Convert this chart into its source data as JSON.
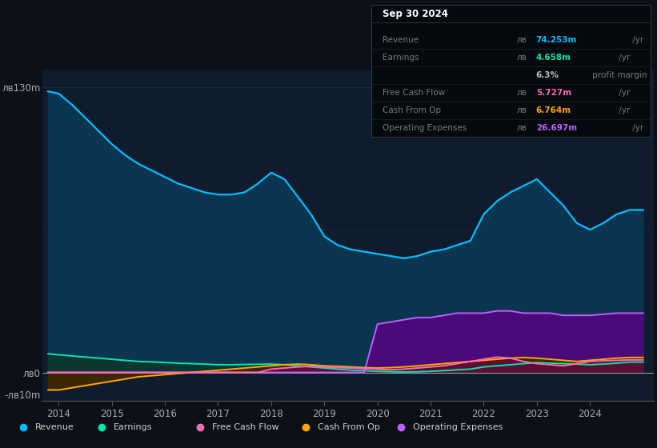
{
  "bg_color": "#0d1117",
  "plot_bg_color": "#0e1c2e",
  "revenue_color": "#00bfff",
  "earnings_color": "#00e5b0",
  "fcf_color": "#ff69b4",
  "cashop_color": "#ffa500",
  "opex_color": "#bf5fff",
  "revenue_fill": "#0a3550",
  "earnings_fill": "#0a3530",
  "opex_fill": "#4a0a7a",
  "years": [
    2013.8,
    2014.0,
    2014.25,
    2014.5,
    2014.75,
    2015.0,
    2015.25,
    2015.5,
    2015.75,
    2016.0,
    2016.25,
    2016.5,
    2016.75,
    2017.0,
    2017.25,
    2017.5,
    2017.75,
    2018.0,
    2018.25,
    2018.5,
    2018.75,
    2019.0,
    2019.25,
    2019.5,
    2019.75,
    2020.0,
    2020.25,
    2020.5,
    2020.75,
    2021.0,
    2021.25,
    2021.5,
    2021.75,
    2022.0,
    2022.25,
    2022.5,
    2022.75,
    2023.0,
    2023.25,
    2023.5,
    2023.75,
    2024.0,
    2024.25,
    2024.5,
    2024.75,
    2025.0
  ],
  "revenue": [
    128,
    127,
    122,
    116,
    110,
    104,
    99,
    95,
    92,
    89,
    86,
    84,
    82,
    81,
    81,
    82,
    86,
    91,
    88,
    80,
    72,
    62,
    58,
    56,
    55,
    54,
    53,
    52,
    53,
    55,
    56,
    58,
    60,
    72,
    78,
    82,
    85,
    88,
    82,
    76,
    68,
    65,
    68,
    72,
    74,
    74
  ],
  "earnings": [
    8.5,
    8.0,
    7.5,
    7.0,
    6.5,
    6.0,
    5.5,
    5.0,
    4.8,
    4.5,
    4.2,
    4.0,
    3.8,
    3.5,
    3.5,
    3.6,
    3.7,
    3.8,
    3.5,
    3.0,
    2.5,
    2.0,
    1.5,
    1.0,
    0.8,
    0.5,
    0.3,
    0.2,
    0.3,
    0.5,
    0.8,
    1.2,
    1.5,
    2.5,
    3.0,
    3.5,
    4.0,
    4.5,
    4.2,
    4.0,
    3.8,
    3.5,
    3.8,
    4.2,
    4.7,
    4.7
  ],
  "free_cash_flow": [
    0,
    0,
    0,
    0,
    0,
    0,
    0,
    0,
    0,
    0,
    0,
    0,
    0,
    0,
    0,
    0,
    0,
    1.5,
    2.0,
    2.5,
    2.8,
    2.5,
    2.2,
    2.0,
    1.8,
    1.5,
    1.2,
    1.5,
    2.0,
    2.5,
    3.0,
    4.0,
    5.0,
    6.0,
    7.0,
    6.5,
    5.0,
    4.0,
    3.5,
    3.0,
    4.0,
    5.0,
    5.3,
    5.5,
    5.7,
    5.7
  ],
  "cash_from_op": [
    -8,
    -8,
    -7,
    -6,
    -5,
    -4,
    -3,
    -2,
    -1.5,
    -1,
    -0.5,
    0,
    0.5,
    1.0,
    1.5,
    2.0,
    2.5,
    3.0,
    3.5,
    3.8,
    3.5,
    3.0,
    2.8,
    2.5,
    2.2,
    2.0,
    2.2,
    2.5,
    3.0,
    3.5,
    4.0,
    4.5,
    5.0,
    5.5,
    6.0,
    6.5,
    6.8,
    6.5,
    6.0,
    5.5,
    5.0,
    5.5,
    6.0,
    6.5,
    6.8,
    6.8
  ],
  "operating_expenses": [
    0,
    0,
    0,
    0,
    0,
    0,
    0,
    0,
    0,
    0,
    0,
    0,
    0,
    0,
    0,
    0,
    0,
    0,
    0,
    0,
    0,
    0,
    0,
    0,
    0,
    22,
    23,
    24,
    25,
    25,
    26,
    27,
    27,
    27,
    28,
    28,
    27,
    27,
    27,
    26,
    26,
    26,
    26.5,
    27,
    27,
    27
  ],
  "ylim": [
    -13,
    138
  ],
  "xlim": [
    2013.7,
    2025.2
  ],
  "ytick_vals": [
    -10,
    0,
    130
  ],
  "ytick_labels": [
    "-лв10m",
    "лв0",
    "лв130m"
  ],
  "xtick_vals": [
    2014,
    2015,
    2016,
    2017,
    2018,
    2019,
    2020,
    2021,
    2022,
    2023,
    2024
  ],
  "legend_labels": [
    "Revenue",
    "Earnings",
    "Free Cash Flow",
    "Cash From Op",
    "Operating Expenses"
  ],
  "legend_colors": [
    "#00bfff",
    "#00e5b0",
    "#ff69b4",
    "#ffa500",
    "#bf5fff"
  ],
  "info_box": {
    "title": "Sep 30 2024",
    "rows": [
      {
        "label": "Revenue",
        "prefix": "лв",
        "value": "74.253m",
        "suffix": " /yr",
        "color": "#00bfff"
      },
      {
        "label": "Earnings",
        "prefix": "лв",
        "value": "4.658m",
        "suffix": " /yr",
        "color": "#00e5b0"
      },
      {
        "label": "",
        "prefix": "",
        "value": "6.3%",
        "suffix": " profit margin",
        "color": "#bbbbbb"
      },
      {
        "label": "Free Cash Flow",
        "prefix": "лв",
        "value": "5.727m",
        "suffix": " /yr",
        "color": "#ff69b4"
      },
      {
        "label": "Cash From Op",
        "prefix": "лв",
        "value": "6.764m",
        "suffix": " /yr",
        "color": "#ffa500"
      },
      {
        "label": "Operating Expenses",
        "prefix": "лв",
        "value": "26.697m",
        "suffix": " /yr",
        "color": "#bf5fff"
      }
    ]
  }
}
